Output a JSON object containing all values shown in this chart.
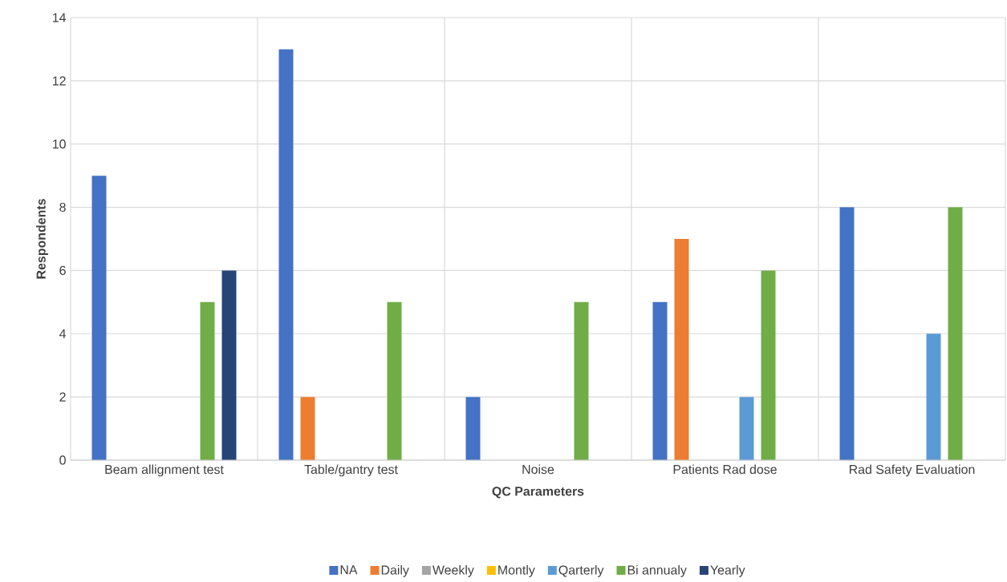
{
  "chart_data": {
    "type": "bar",
    "xlabel": "QC Parameters",
    "ylabel": "Respondents",
    "categories": [
      "Beam allignment test",
      "Table/gantry test",
      "Noise",
      "Patients Rad dose",
      "Rad Safety Evaluation"
    ],
    "series": [
      {
        "name": "NA",
        "color": "#4472c4",
        "values": [
          9,
          13,
          2,
          5,
          8
        ]
      },
      {
        "name": "Daily",
        "color": "#ed7d31",
        "values": [
          0,
          2,
          0,
          7,
          0
        ]
      },
      {
        "name": "Weekly",
        "color": "#a5a5a5",
        "values": [
          0,
          0,
          0,
          0,
          0
        ]
      },
      {
        "name": "Montly",
        "color": "#ffc000",
        "values": [
          0,
          0,
          0,
          0,
          0
        ]
      },
      {
        "name": "Qarterly",
        "color": "#5b9bd5",
        "values": [
          0,
          0,
          0,
          2,
          4
        ]
      },
      {
        "name": "Bi annualy",
        "color": "#70ad47",
        "values": [
          5,
          5,
          5,
          6,
          8
        ]
      },
      {
        "name": "Yearly",
        "color": "#264478",
        "values": [
          6,
          0,
          0,
          0,
          0
        ]
      }
    ],
    "ylim": [
      0,
      14
    ],
    "yticks": [
      0,
      2,
      4,
      6,
      8,
      10,
      12,
      14
    ],
    "grid": true,
    "legend": "bottom"
  }
}
